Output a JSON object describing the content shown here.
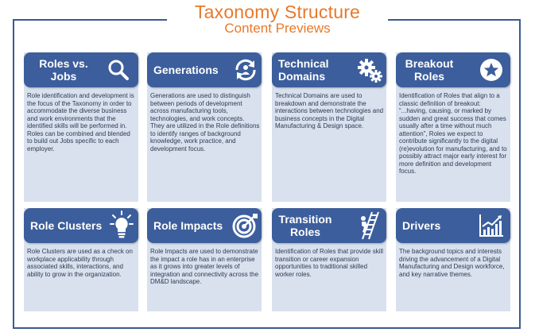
{
  "title": "Taxonomy Structure",
  "subtitle": "Content Previews",
  "cards": [
    {
      "title": "Roles vs. Jobs",
      "title_lines": [
        "Roles vs.",
        "Jobs"
      ],
      "icon": "magnifier-icon",
      "body": "Role identification and development is the focus of the Taxonomy in order to accommodate the diverse business and work environments that the identified skills will be performed in. Roles can be combined and blended to build out Jobs specific to each employer."
    },
    {
      "title": "Generations",
      "title_lines": [
        "Generations"
      ],
      "icon": "refresh-person-icon",
      "body": "Generations are used to distinguish between periods of development across manufacturing tools, technologies, and work concepts. They are utilized in the Role definitions to identify ranges of background knowledge, work practice, and development focus."
    },
    {
      "title": "Technical Domains",
      "title_lines": [
        "Technical",
        "Domains"
      ],
      "icon": "gears-icon",
      "body": "Technical Domains are used to breakdown and demonstrate the interactions between technologies and business concepts in the Digital Manufacturing & Design space."
    },
    {
      "title": "Breakout Roles",
      "title_lines": [
        "Breakout",
        "Roles"
      ],
      "icon": "star-badge-icon",
      "body": "Identification of Roles that align to a classic definition of breakout: “...having, causing, or marked by sudden and great success that comes usually after a time without much attention”, Roles we expect to contribute significantly to the digital (re)evolution for manufacturing, and to possibly attract major early interest for more definition and development focus."
    },
    {
      "title": "Role Clusters",
      "title_lines": [
        "Role Clusters"
      ],
      "icon": "lightbulb-icon",
      "body": "Role Clusters are used as a check on workplace applicability through associated skills, interactions, and ability to grow in the organization."
    },
    {
      "title": "Role Impacts",
      "title_lines": [
        "Role Impacts"
      ],
      "icon": "target-icon",
      "body": "Role Impacts are used to demonstrate the impact a role has in an enterprise as it grows into greater levels of integration and connectivity across the DM&D landscape."
    },
    {
      "title": "Transition Roles",
      "title_lines": [
        "Transition",
        "Roles"
      ],
      "icon": "ladder-climber-icon",
      "body": "Identification of Roles that provide skill transition or career expansion opportunities to traditional skilled worker roles."
    },
    {
      "title": "Drivers",
      "title_lines": [
        "Drivers"
      ],
      "icon": "growth-chart-icon",
      "body": "The background topics and interests driving the advancement of a Digital Manufacturing and Design workforce, and key narrative themes."
    }
  ]
}
